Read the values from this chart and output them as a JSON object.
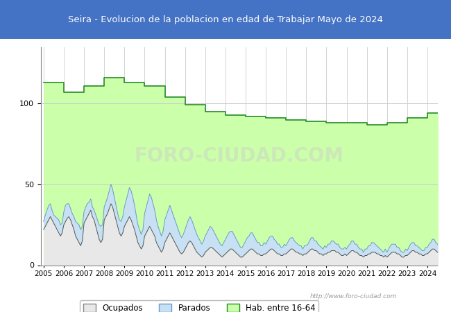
{
  "title": "Seira - Evolucion de la poblacion en edad de Trabajar Mayo de 2024",
  "title_bg": "#4472c4",
  "title_color": "#ffffff",
  "ylim": [
    0,
    135
  ],
  "yticks": [
    0,
    50,
    100
  ],
  "years": [
    2005,
    2006,
    2007,
    2008,
    2009,
    2010,
    2011,
    2012,
    2013,
    2014,
    2015,
    2016,
    2017,
    2018,
    2019,
    2020,
    2021,
    2022,
    2023,
    2024
  ],
  "hab_16_64": [
    113,
    107,
    111,
    116,
    113,
    111,
    104,
    99,
    95,
    93,
    92,
    91,
    90,
    89,
    88,
    88,
    87,
    88,
    91,
    94
  ],
  "ocupados_monthly": [
    22,
    24,
    26,
    28,
    30,
    28,
    26,
    24,
    22,
    20,
    18,
    20,
    25,
    27,
    29,
    30,
    28,
    25,
    22,
    18,
    16,
    14,
    12,
    15,
    26,
    28,
    30,
    32,
    34,
    30,
    28,
    24,
    20,
    16,
    14,
    16,
    28,
    30,
    32,
    35,
    38,
    36,
    32,
    28,
    24,
    20,
    18,
    20,
    24,
    26,
    28,
    30,
    28,
    25,
    22,
    18,
    14,
    12,
    10,
    12,
    18,
    20,
    22,
    24,
    22,
    20,
    18,
    14,
    12,
    10,
    8,
    10,
    14,
    16,
    18,
    20,
    18,
    16,
    14,
    12,
    10,
    8,
    7,
    8,
    10,
    12,
    14,
    15,
    14,
    12,
    10,
    8,
    7,
    6,
    5,
    6,
    8,
    9,
    10,
    11,
    11,
    10,
    9,
    8,
    7,
    6,
    5,
    6,
    7,
    8,
    9,
    10,
    10,
    9,
    8,
    7,
    6,
    5,
    5,
    6,
    7,
    8,
    9,
    10,
    10,
    9,
    8,
    7,
    7,
    6,
    6,
    7,
    7,
    8,
    9,
    10,
    10,
    9,
    8,
    7,
    7,
    6,
    6,
    7,
    7,
    8,
    9,
    10,
    10,
    9,
    8,
    8,
    7,
    7,
    6,
    7,
    7,
    8,
    9,
    10,
    10,
    9,
    9,
    8,
    7,
    7,
    6,
    7,
    7,
    8,
    8,
    9,
    9,
    9,
    8,
    8,
    7,
    6,
    6,
    7,
    6,
    7,
    8,
    9,
    9,
    8,
    8,
    7,
    6,
    6,
    5,
    6,
    6,
    7,
    7,
    8,
    8,
    8,
    7,
    7,
    6,
    6,
    5,
    6,
    5,
    6,
    7,
    8,
    8,
    8,
    7,
    7,
    6,
    5,
    5,
    6,
    6,
    7,
    8,
    9,
    9,
    8,
    8,
    7,
    7,
    6,
    6,
    7,
    7,
    8,
    9,
    10,
    10,
    9,
    8,
    7,
    7,
    6,
    5,
    6
  ],
  "parados_monthly": [
    5,
    7,
    8,
    9,
    8,
    6,
    5,
    6,
    7,
    8,
    7,
    6,
    8,
    10,
    9,
    8,
    7,
    7,
    8,
    9,
    10,
    11,
    10,
    9,
    7,
    8,
    8,
    7,
    7,
    6,
    6,
    7,
    8,
    9,
    10,
    9,
    8,
    9,
    10,
    11,
    12,
    11,
    10,
    9,
    8,
    8,
    9,
    10,
    12,
    14,
    16,
    18,
    18,
    17,
    15,
    13,
    11,
    10,
    9,
    10,
    14,
    16,
    18,
    20,
    20,
    18,
    16,
    14,
    12,
    11,
    10,
    11,
    14,
    15,
    16,
    17,
    16,
    15,
    14,
    13,
    12,
    11,
    10,
    11,
    12,
    13,
    14,
    15,
    14,
    13,
    12,
    11,
    10,
    9,
    8,
    9,
    10,
    11,
    12,
    13,
    12,
    11,
    10,
    9,
    8,
    7,
    7,
    8,
    9,
    10,
    11,
    11,
    11,
    10,
    9,
    8,
    7,
    6,
    6,
    7,
    8,
    9,
    9,
    10,
    10,
    9,
    8,
    7,
    7,
    6,
    6,
    7,
    6,
    7,
    8,
    8,
    8,
    7,
    7,
    6,
    6,
    5,
    5,
    6,
    5,
    6,
    7,
    7,
    7,
    6,
    6,
    5,
    5,
    5,
    4,
    5,
    5,
    5,
    6,
    7,
    7,
    6,
    6,
    5,
    5,
    4,
    4,
    5,
    4,
    5,
    5,
    6,
    6,
    5,
    5,
    5,
    4,
    4,
    4,
    4,
    4,
    5,
    5,
    6,
    6,
    5,
    5,
    4,
    4,
    4,
    3,
    4,
    4,
    5,
    5,
    6,
    6,
    5,
    5,
    4,
    4,
    3,
    3,
    4,
    3,
    4,
    5,
    5,
    5,
    5,
    4,
    4,
    3,
    3,
    3,
    4,
    3,
    4,
    5,
    5,
    5,
    4,
    4,
    4,
    3,
    3,
    3,
    4,
    4,
    5,
    5,
    6,
    6,
    5,
    5,
    4,
    4,
    3,
    3,
    4
  ],
  "hab_color": "#ccffaa",
  "hab_line_color": "#228B22",
  "ocupados_color": "#e8e8e8",
  "ocupados_line_color": "#555555",
  "parados_color": "#c8e0f4",
  "parados_line_color": "#6699cc",
  "background_color": "#ffffff",
  "plot_bg_color": "#ffffff",
  "grid_color": "#cccccc",
  "watermark": "http://www.foro-ciudad.com",
  "legend_labels": [
    "Ocupados",
    "Parados",
    "Hab. entre 16-64"
  ]
}
